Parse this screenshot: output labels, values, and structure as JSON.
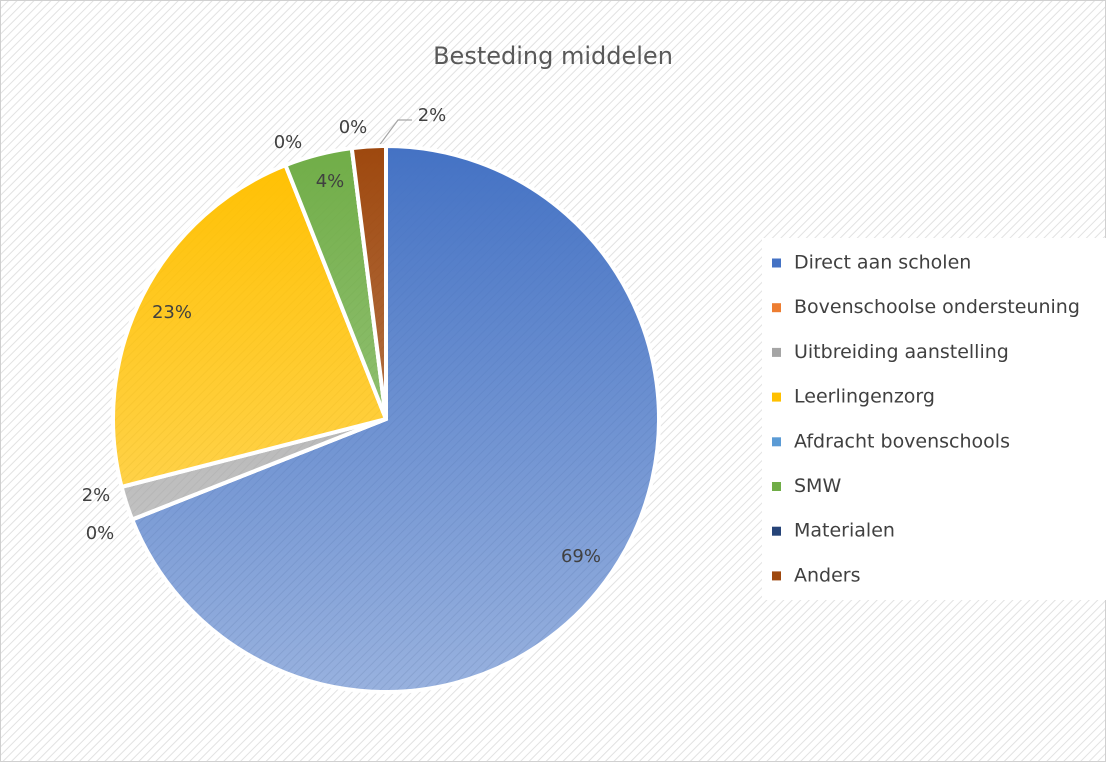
{
  "chart_data": {
    "type": "pie",
    "title": "Besteding middelen",
    "categories": [
      "Direct aan scholen",
      "Bovenschoolse ondersteuning",
      "Uitbreiding aanstelling",
      "Leerlingenzorg",
      "Afdracht bovenschools",
      "SMW",
      "Materialen",
      "Anders"
    ],
    "values": [
      69,
      0,
      2,
      23,
      0,
      4,
      0,
      2
    ],
    "value_labels": [
      "69%",
      "0%",
      "2%",
      "23%",
      "0%",
      "4%",
      "0%",
      "2%"
    ],
    "colors": [
      "#4472c4",
      "#ed7d31",
      "#a5a5a5",
      "#ffc000",
      "#5b9bd5",
      "#70ad47",
      "#264478",
      "#9e480e"
    ],
    "legend": "right"
  }
}
